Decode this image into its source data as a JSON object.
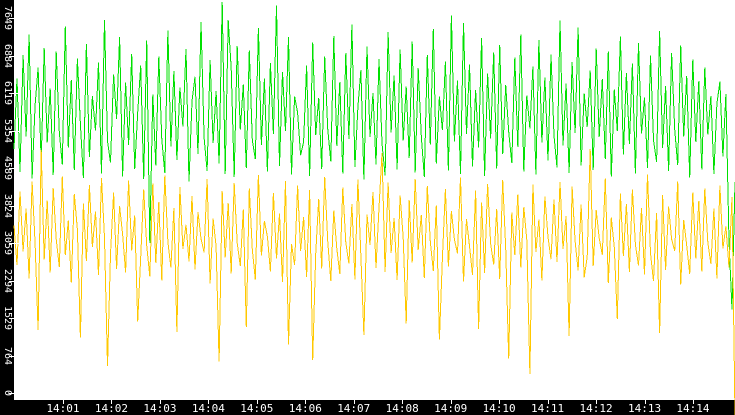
{
  "window": {
    "background": "#ffffff",
    "axis_bar_color": "#000000",
    "axis_text_color": "#ffffff"
  },
  "chart_data": {
    "type": "line",
    "title": "",
    "grid": false,
    "legend_position": "none",
    "ylim": [
      0,
      8016
    ],
    "x_axis": {
      "label": "",
      "tick_labels": [
        "14:01",
        "14:02",
        "14:03",
        "14:04",
        "14:05",
        "14:06",
        "14:07",
        "14:08",
        "14:09",
        "14:10",
        "14:11",
        "14:12",
        "14:13",
        "14:14"
      ]
    },
    "y_axis": {
      "label": "",
      "tick_labels": [
        "0",
        "764",
        "1529",
        "2294",
        "3059",
        "3824",
        "4589",
        "5354",
        "6119",
        "6884",
        "7649"
      ],
      "tick_values": [
        0,
        764,
        1529,
        2294,
        3059,
        3824,
        4589,
        5354,
        6119,
        6884,
        7649
      ]
    },
    "series": [
      {
        "name": "green",
        "color": "#00e000",
        "values": [
          4980,
          6420,
          4510,
          6890,
          5230,
          7310,
          4380,
          5870,
          6640,
          4720,
          7040,
          5110,
          6210,
          4450,
          6970,
          5320,
          4660,
          7480,
          5010,
          6380,
          4550,
          6820,
          5480,
          4390,
          7120,
          4810,
          6060,
          5350,
          6740,
          4480,
          7610,
          5140,
          4700,
          6500,
          5590,
          7260,
          4420,
          6330,
          5060,
          6910,
          4570,
          5720,
          6680,
          4360,
          7190,
          3060,
          6090,
          4640,
          6860,
          5170,
          4490,
          7390,
          5030,
          6570,
          4750,
          6230,
          5440,
          7020,
          4310,
          5950,
          6450,
          4870,
          7570,
          5210,
          4530,
          6790,
          5100,
          6160,
          4680,
          7980,
          4470,
          7610,
          6620,
          4410,
          7080,
          5370,
          6290,
          4590,
          6990,
          5160,
          4770,
          7450,
          5060,
          6410,
          4520,
          6730,
          5280,
          7900,
          4630,
          6550,
          5340,
          7260,
          4460,
          6050,
          5720,
          4850,
          5120,
          6680,
          4430,
          7150,
          5260,
          6020,
          4570,
          6860,
          5390,
          4720,
          7280,
          5040,
          6340,
          4480,
          6940,
          5180,
          7520,
          4610,
          5830,
          6590,
          4350,
          7070,
          5220,
          6120,
          4660,
          6810,
          5090,
          4440,
          7360,
          5310,
          6480,
          4560,
          7010,
          5150,
          6250,
          4790,
          7170,
          4500,
          6630,
          5240,
          4410,
          6890,
          5070,
          7420,
          4680,
          6050,
          5360,
          6760,
          4540,
          7700,
          5130,
          6370,
          4470,
          7550,
          5280,
          6700,
          4620,
          6180,
          5010,
          7240,
          4430,
          6520,
          5190,
          6950,
          4580,
          7100,
          4870,
          6280,
          5330,
          4690,
          6840,
          5020,
          7310,
          4520,
          6070,
          5400,
          6660,
          4460,
          7200,
          5110,
          6440,
          4740,
          6900,
          5250,
          4600,
          7600,
          5050,
          6310,
          4490,
          6750,
          5300,
          7460,
          4640,
          6110,
          5430,
          6580,
          4550,
          7030,
          5220,
          6400,
          4770,
          6970,
          4420,
          6190,
          5340,
          7270,
          4860,
          6530,
          5080,
          6720,
          4480,
          7140,
          5290,
          6030,
          4590,
          6880,
          5160,
          4710,
          7380,
          5000,
          6260,
          4530,
          6930,
          5380,
          4650,
          7090,
          5230,
          6470,
          4400,
          6800,
          5120,
          6360,
          4560,
          6640,
          5270,
          6060,
          4470,
          5900,
          6350,
          4820,
          6100,
          3100,
          1700,
          4300
        ]
      },
      {
        "name": "yellow",
        "color": "#ffc800",
        "values": [
          3420,
          2610,
          4110,
          2890,
          3760,
          2340,
          4310,
          3050,
          1280,
          4960,
          2720,
          3930,
          2460,
          4180,
          3140,
          2570,
          4420,
          2810,
          3520,
          2250,
          4060,
          3330,
          1130,
          3870,
          2690,
          4240,
          2980,
          3700,
          2410,
          4390,
          3160,
          550,
          2840,
          4090,
          2530,
          3810,
          3240,
          2460,
          4330,
          2910,
          3620,
          1460,
          2770,
          4150,
          3010,
          2380,
          4270,
          2650,
          3900,
          2290,
          4440,
          3080,
          2560,
          3770,
          1240,
          4200,
          2940,
          3430,
          2680,
          4020,
          2520,
          3690,
          3150,
          2870,
          4360,
          2230,
          3560,
          2990,
          640,
          4120,
          2760,
          3880,
          2440,
          4280,
          3060,
          2590,
          3740,
          1350,
          4170,
          2930,
          2310,
          4450,
          2800,
          3510,
          3190,
          2480,
          4080,
          2740,
          3660,
          2260,
          4320,
          990,
          3040,
          2610,
          4230,
          2900,
          3590,
          2370,
          4140,
          670,
          2830,
          3960,
          2540,
          4410,
          3110,
          2280,
          3720,
          2950,
          2430,
          4190,
          3070,
          2640,
          3850,
          2320,
          4350,
          2780,
          1180,
          3640,
          3020,
          4100,
          2550,
          3780,
          4900,
          2470,
          4290,
          2860,
          3570,
          2300,
          4030,
          3170,
          1420,
          3940,
          2660,
          4370,
          2920,
          3630,
          2350,
          4220,
          3090,
          2490,
          3820,
          1090,
          2750,
          4160,
          2580,
          3710,
          3130,
          2850,
          4400,
          2270,
          3550,
          3000,
          2410,
          4130,
          1310,
          3890,
          2450,
          4260,
          3050,
          2620,
          3750,
          2330,
          4340,
          2960,
          700,
          3680,
          2810,
          4050,
          2560,
          3790,
          3120,
          390,
          4250,
          2880,
          3540,
          2290,
          4010,
          3180,
          2730,
          3950,
          2670,
          4300,
          2940,
          3610,
          1160,
          4210,
          3100,
          2500,
          3840,
          2360,
          2770,
          4980,
          2590,
          3730,
          3160,
          2820,
          4380,
          2240,
          3580,
          2970,
          1510,
          4070,
          2790,
          3860,
          2470,
          4150,
          3030,
          2600,
          3770,
          2420,
          4460,
          2850,
          2280,
          3670,
          1220,
          4040,
          2510,
          3800,
          3140,
          2900,
          4310,
          2210,
          3530,
          3010,
          2430,
          4090,
          2740,
          3920,
          2480,
          4170,
          3080,
          2630,
          3760,
          2340,
          4230,
          2950,
          3400,
          2560,
          4000,
          -460
        ]
      }
    ]
  }
}
